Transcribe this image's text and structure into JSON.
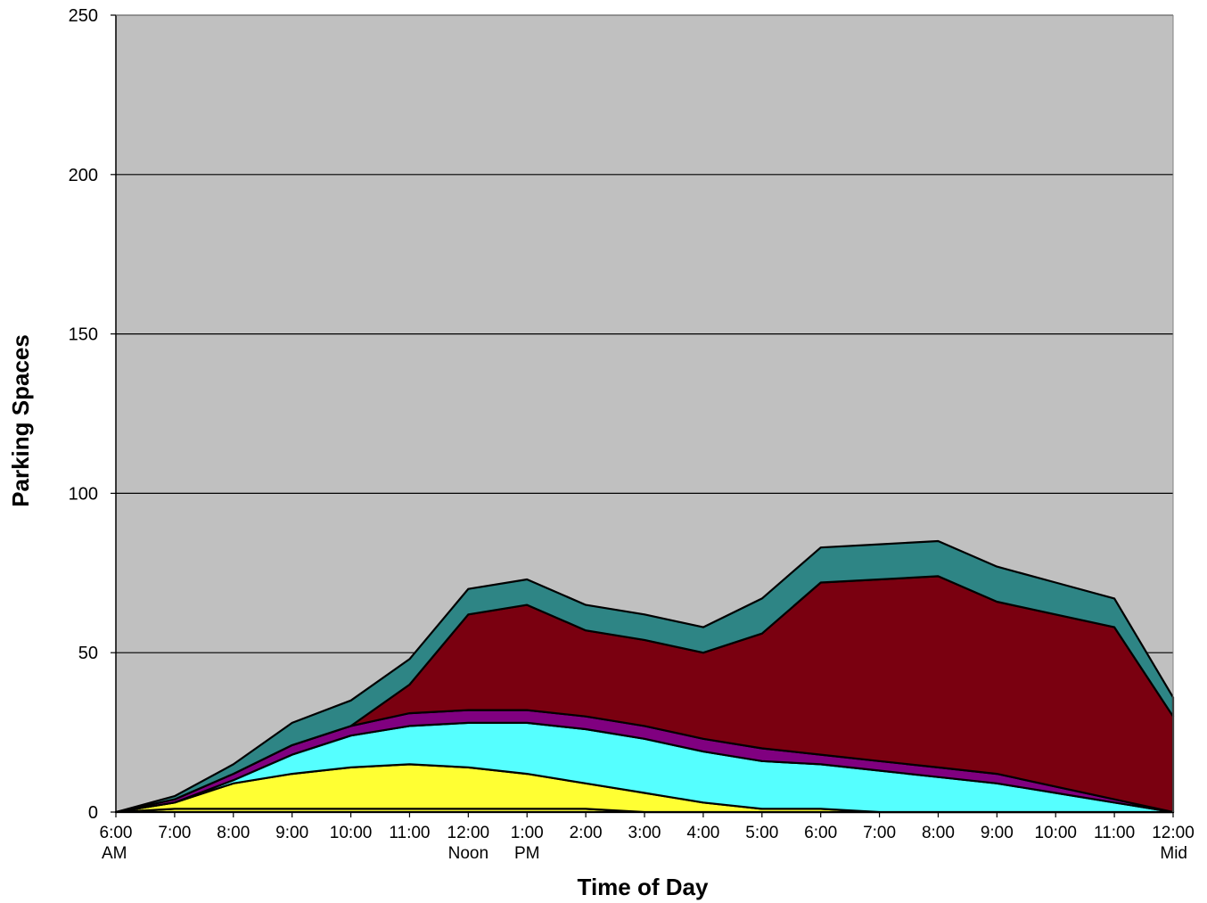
{
  "chart_data": {
    "type": "area",
    "stacked": true,
    "title": "",
    "xlabel": "Time of Day",
    "ylabel": "Parking Spaces",
    "ylim": [
      0,
      250
    ],
    "yticks": [
      0,
      50,
      100,
      150,
      200,
      250
    ],
    "grid": true,
    "background_color": "#c0c0c0",
    "categories": [
      "6:00 AM",
      "7:00",
      "8:00",
      "9:00",
      "10:00",
      "11:00",
      "12:00 Noon",
      "1:00 PM",
      "2:00",
      "3:00",
      "4:00",
      "5:00",
      "6:00",
      "7:00",
      "8:00",
      "9:00",
      "10:00",
      "11:00",
      "12:00 Mid"
    ],
    "tick_labels": [
      {
        "line1": "6:00",
        "line2": "AM"
      },
      {
        "line1": "7:00",
        "line2": ""
      },
      {
        "line1": "8:00",
        "line2": ""
      },
      {
        "line1": "9:00",
        "line2": ""
      },
      {
        "line1": "10:00",
        "line2": ""
      },
      {
        "line1": "11:00",
        "line2": ""
      },
      {
        "line1": "12:00",
        "line2": "Noon"
      },
      {
        "line1": "1:00",
        "line2": "PM"
      },
      {
        "line1": "2:00",
        "line2": ""
      },
      {
        "line1": "3:00",
        "line2": ""
      },
      {
        "line1": "4:00",
        "line2": ""
      },
      {
        "line1": "5:00",
        "line2": ""
      },
      {
        "line1": "6:00",
        "line2": ""
      },
      {
        "line1": "7:00",
        "line2": ""
      },
      {
        "line1": "8:00",
        "line2": ""
      },
      {
        "line1": "9:00",
        "line2": ""
      },
      {
        "line1": "10:00",
        "line2": ""
      },
      {
        "line1": "11:00",
        "line2": ""
      },
      {
        "line1": "12:00",
        "line2": "Mid"
      }
    ],
    "series": [
      {
        "color": "#ffff33",
        "values": [
          0,
          1,
          1,
          1,
          1,
          1,
          1,
          1,
          1,
          0,
          0,
          0,
          0,
          0,
          0,
          0,
          0,
          0,
          0
        ]
      },
      {
        "color": "#ffff33",
        "values": [
          0,
          2,
          8,
          11,
          13,
          14,
          13,
          11,
          8,
          6,
          3,
          1,
          1,
          0,
          0,
          0,
          0,
          0,
          0
        ]
      },
      {
        "color": "#55ffff",
        "values": [
          0,
          0,
          1,
          6,
          10,
          12,
          14,
          16,
          17,
          17,
          16,
          15,
          14,
          13,
          11,
          9,
          6,
          3,
          0
        ]
      },
      {
        "color": "#800080",
        "values": [
          0,
          1,
          2,
          3,
          3,
          4,
          4,
          4,
          4,
          4,
          4,
          4,
          3,
          3,
          3,
          3,
          2,
          1,
          0
        ]
      },
      {
        "color": "#7a0010",
        "values": [
          0,
          0,
          0,
          0,
          0,
          9,
          30,
          33,
          27,
          27,
          27,
          36,
          54,
          57,
          60,
          54,
          54,
          54,
          30
        ]
      },
      {
        "color": "#2e8585",
        "values": [
          0,
          1,
          3,
          7,
          8,
          8,
          8,
          8,
          8,
          8,
          8,
          11,
          11,
          11,
          11,
          11,
          10,
          9,
          6
        ]
      }
    ]
  }
}
